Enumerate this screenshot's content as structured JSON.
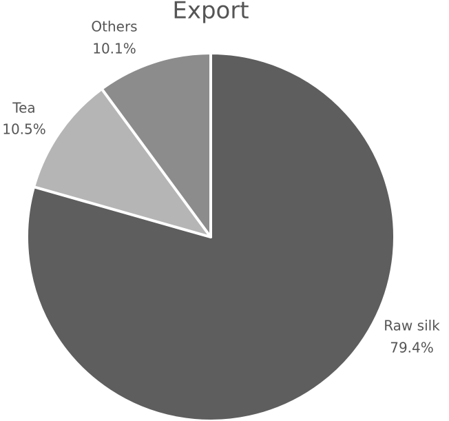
{
  "chart_data": {
    "type": "pie",
    "title": "Export",
    "categories": [
      "Raw silk",
      "Tea",
      "Others"
    ],
    "values": [
      79.4,
      10.5,
      10.1
    ],
    "value_labels": [
      "79.4%",
      "10.5%",
      "10.1%"
    ],
    "colors": [
      "#5e5e5e",
      "#b5b5b5",
      "#8c8c8c"
    ]
  }
}
